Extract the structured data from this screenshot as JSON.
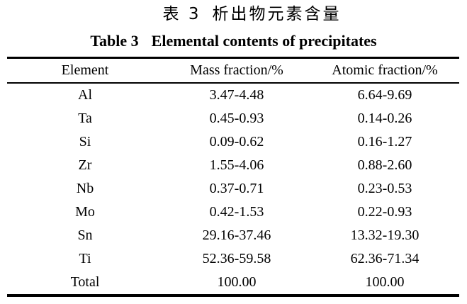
{
  "page": {
    "background": "#ffffff",
    "text_color": "#000000",
    "rule_color": "#000000"
  },
  "caption": {
    "zh_label": "表 3",
    "zh_title": "析出物元素含量",
    "en_label": "Table 3",
    "en_title": "Elemental contents of precipitates"
  },
  "table": {
    "headers": [
      "Element",
      "Mass fraction/%",
      "Atomic fraction/%"
    ],
    "rows": [
      [
        "Al",
        "3.47-4.48",
        "6.64-9.69"
      ],
      [
        "Ta",
        "0.45-0.93",
        "0.14-0.26"
      ],
      [
        "Si",
        "0.09-0.62",
        "0.16-1.27"
      ],
      [
        "Zr",
        "1.55-4.06",
        "0.88-2.60"
      ],
      [
        "Nb",
        "0.37-0.71",
        "0.23-0.53"
      ],
      [
        "Mo",
        "0.42-1.53",
        "0.22-0.93"
      ],
      [
        "Sn",
        "29.16-37.46",
        "13.32-19.30"
      ],
      [
        "Ti",
        "52.36-59.58",
        "62.36-71.34"
      ],
      [
        "Total",
        "100.00",
        "100.00"
      ]
    ]
  }
}
